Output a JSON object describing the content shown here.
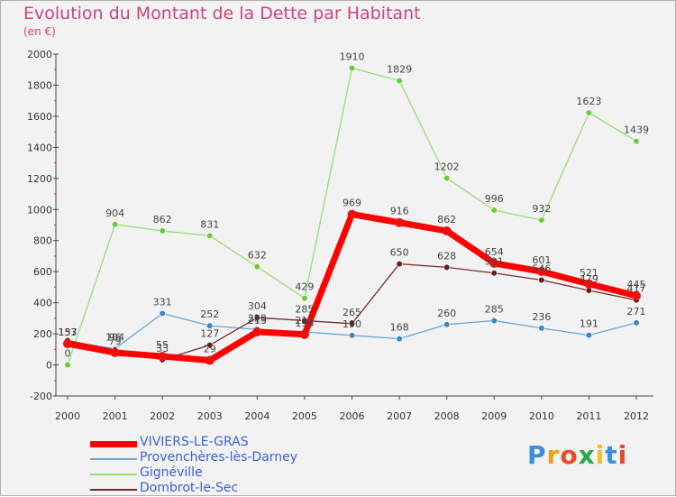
{
  "title": "Evolution du Montant de la Dette par Habitant",
  "subtitle": "(en €)",
  "logo": "Proxiti",
  "chart_data": {
    "type": "line",
    "x": [
      "2000",
      "2001",
      "2002",
      "2003",
      "2004",
      "2005",
      "2006",
      "2007",
      "2008",
      "2009",
      "2010",
      "2011",
      "2012"
    ],
    "ylim": [
      -200,
      2000
    ],
    "yticks": [
      -200,
      0,
      200,
      400,
      600,
      800,
      1000,
      1200,
      1400,
      1600,
      1800,
      2000
    ],
    "grid": false,
    "legend_placement": "bottom-left",
    "series": [
      {
        "name": "VIVIERS-LE-GRAS",
        "color": "#ff0000",
        "marker": "#ee1111",
        "width": 7,
        "values": [
          137,
          79,
          55,
          29,
          213,
          196,
          969,
          916,
          862,
          654,
          601,
          521,
          445
        ]
      },
      {
        "name": "Provenchères-lès-Darney",
        "color": "#6aa6d6",
        "marker": "#3c85c8",
        "width": 1.3,
        "values": [
          153,
          104,
          331,
          252,
          228,
          212,
          190,
          168,
          260,
          285,
          236,
          191,
          271
        ]
      },
      {
        "name": "Gignéville",
        "color": "#99dd77",
        "marker": "#66cc33",
        "width": 1.3,
        "values": [
          0,
          904,
          862,
          831,
          632,
          429,
          1910,
          1829,
          1202,
          996,
          932,
          1623,
          1439
        ]
      },
      {
        "name": "Dombrot-le-Sec",
        "color": "#7a2a2a",
        "marker": "#6b1c1c",
        "width": 1.3,
        "values": [
          157,
          96,
          33,
          127,
          304,
          285,
          265,
          650,
          628,
          591,
          546,
          479,
          417
        ]
      }
    ],
    "data_labels": [
      {
        "text": "157",
        "x": "2000",
        "y": 137
      },
      {
        "text": "153",
        "x": "2000",
        "y": 137
      },
      {
        "text": "137",
        "x": "2000",
        "y": 137
      },
      {
        "text": "0",
        "x": "2000",
        "y": 0
      },
      {
        "text": "904",
        "x": "2001",
        "y": 904
      },
      {
        "text": "96",
        "x": "2001",
        "y": 104
      },
      {
        "text": "104",
        "x": "2001",
        "y": 104
      },
      {
        "text": "79",
        "x": "2001",
        "y": 79
      },
      {
        "text": "862",
        "x": "2002",
        "y": 862
      },
      {
        "text": "331",
        "x": "2002",
        "y": 331
      },
      {
        "text": "55",
        "x": "2002",
        "y": 55
      },
      {
        "text": "33",
        "x": "2002",
        "y": 33
      },
      {
        "text": "831",
        "x": "2003",
        "y": 831
      },
      {
        "text": "252",
        "x": "2003",
        "y": 252
      },
      {
        "text": "127",
        "x": "2003",
        "y": 127
      },
      {
        "text": "29",
        "x": "2003",
        "y": 29
      },
      {
        "text": "632",
        "x": "2004",
        "y": 632
      },
      {
        "text": "304",
        "x": "2004",
        "y": 304
      },
      {
        "text": "228",
        "x": "2004",
        "y": 228
      },
      {
        "text": "213",
        "x": "2004",
        "y": 213
      },
      {
        "text": "429",
        "x": "2005",
        "y": 429
      },
      {
        "text": "285",
        "x": "2005",
        "y": 285
      },
      {
        "text": "212",
        "x": "2005",
        "y": 212
      },
      {
        "text": "196",
        "x": "2005",
        "y": 196
      },
      {
        "text": "1910",
        "x": "2006",
        "y": 1910
      },
      {
        "text": "969",
        "x": "2006",
        "y": 969
      },
      {
        "text": "265",
        "x": "2006",
        "y": 265
      },
      {
        "text": "190",
        "x": "2006",
        "y": 190
      },
      {
        "text": "1829",
        "x": "2007",
        "y": 1829
      },
      {
        "text": "916",
        "x": "2007",
        "y": 916
      },
      {
        "text": "650",
        "x": "2007",
        "y": 650
      },
      {
        "text": "168",
        "x": "2007",
        "y": 168
      },
      {
        "text": "1202",
        "x": "2008",
        "y": 1202
      },
      {
        "text": "862",
        "x": "2008",
        "y": 862
      },
      {
        "text": "628",
        "x": "2008",
        "y": 628
      },
      {
        "text": "260",
        "x": "2008",
        "y": 260
      },
      {
        "text": "996",
        "x": "2009",
        "y": 996
      },
      {
        "text": "654",
        "x": "2009",
        "y": 654
      },
      {
        "text": "591",
        "x": "2009",
        "y": 591
      },
      {
        "text": "285",
        "x": "2009",
        "y": 285
      },
      {
        "text": "932",
        "x": "2010",
        "y": 932
      },
      {
        "text": "601",
        "x": "2010",
        "y": 601
      },
      {
        "text": "546",
        "x": "2010",
        "y": 546
      },
      {
        "text": "236",
        "x": "2010",
        "y": 236
      },
      {
        "text": "1623",
        "x": "2011",
        "y": 1623
      },
      {
        "text": "521",
        "x": "2011",
        "y": 521
      },
      {
        "text": "479",
        "x": "2011",
        "y": 479
      },
      {
        "text": "191",
        "x": "2011",
        "y": 191
      },
      {
        "text": "1439",
        "x": "2012",
        "y": 1439
      },
      {
        "text": "445",
        "x": "2012",
        "y": 445
      },
      {
        "text": "417",
        "x": "2012",
        "y": 417
      },
      {
        "text": "271",
        "x": "2012",
        "y": 271
      }
    ]
  }
}
